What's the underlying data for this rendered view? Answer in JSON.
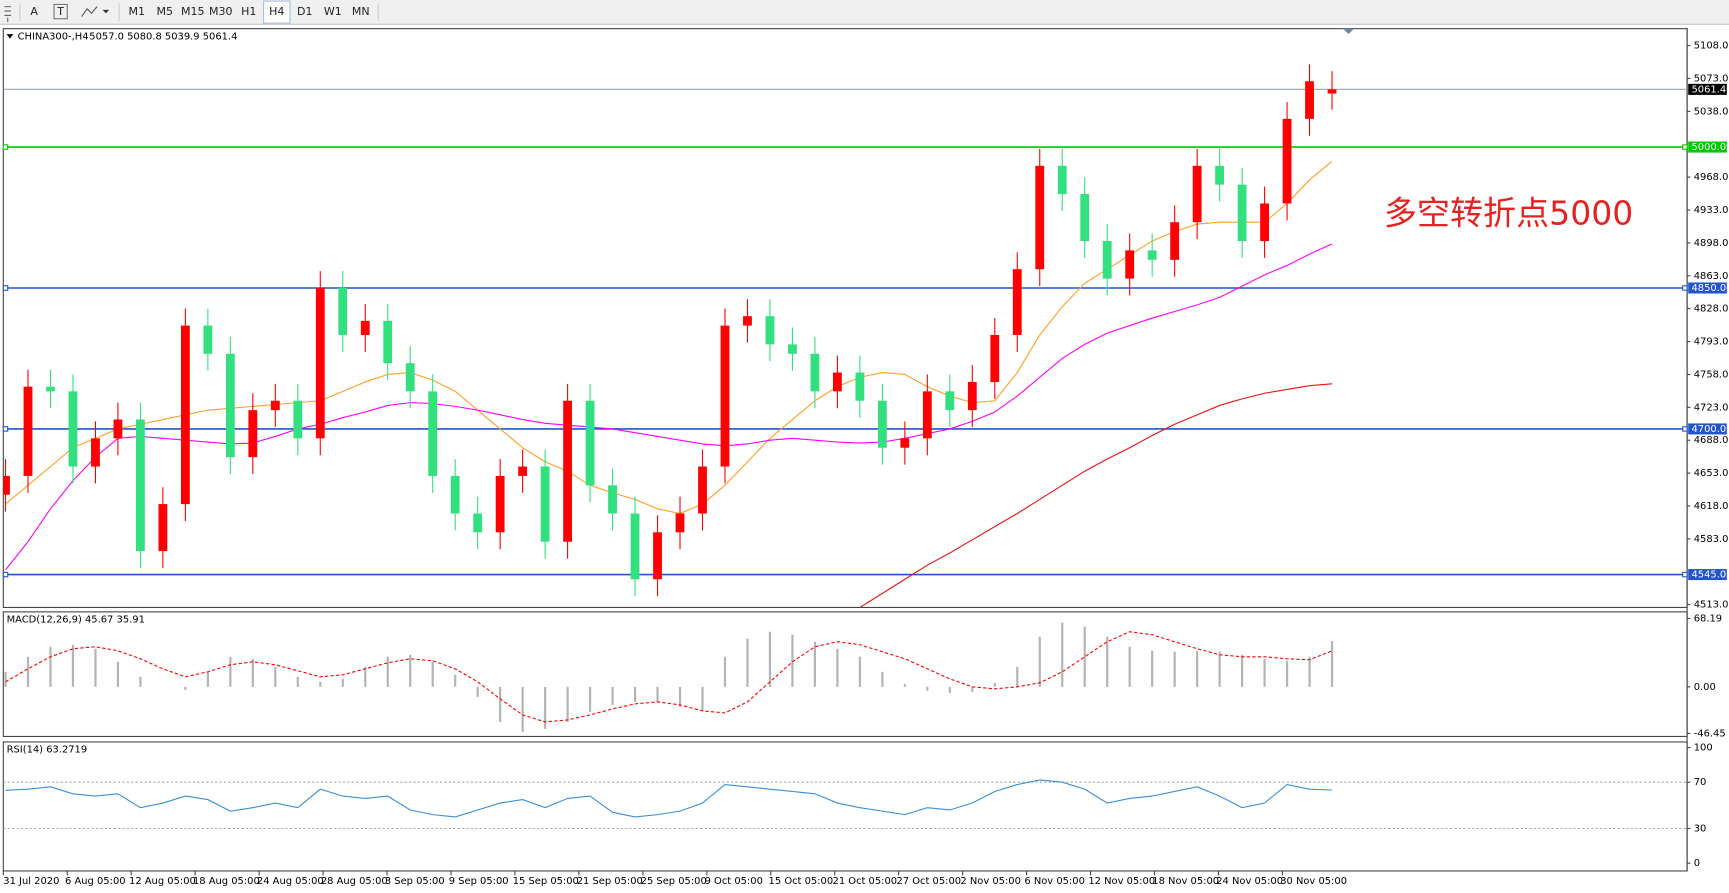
{
  "toolbar": {
    "tools": [
      "A",
      "T"
    ],
    "timeframes": [
      "M1",
      "M5",
      "M15",
      "M30",
      "H1",
      "H4",
      "D1",
      "W1",
      "MN"
    ],
    "active": "H4"
  },
  "chart_data": [
    {
      "type": "candlestick",
      "title": "CHINA300-,H4",
      "ohlc_label": "5057.0 5080.8 5039.9 5061.4",
      "annotation": "多空转折点5000",
      "x_labels": [
        "31 Jul 2020",
        "6 Aug 05:00",
        "12 Aug 05:00",
        "18 Aug 05:00",
        "24 Aug 05:00",
        "28 Aug 05:00",
        "3 Sep 05:00",
        "9 Sep 05:00",
        "15 Sep 05:00",
        "21 Sep 05:00",
        "25 Sep 05:00",
        "9 Oct 05:00",
        "15 Oct 05:00",
        "21 Oct 05:00",
        "27 Oct 05:00",
        "2 Nov 05:00",
        "6 Nov 05:00",
        "12 Nov 05:00",
        "18 Nov 05:00",
        "24 Nov 05:00",
        "30 Nov 05:00"
      ],
      "open": [
        4630,
        4650,
        4745,
        4740,
        4660,
        4690,
        4710,
        4570,
        4620,
        4810,
        4780,
        4670,
        4720,
        4730,
        4690,
        4850,
        4800,
        4815,
        4770,
        4740,
        4650,
        4610,
        4590,
        4650,
        4660,
        4580,
        4730,
        4640,
        4610,
        4540,
        4590,
        4610,
        4660,
        4810,
        4820,
        4790,
        4780,
        4740,
        4760,
        4730,
        4680,
        4690,
        4740,
        4720,
        4750,
        4800,
        4870,
        4980,
        4950,
        4900,
        4860,
        4890,
        4880,
        4920,
        4980,
        4960,
        4900,
        4940,
        5030,
        5057
      ],
      "high": [
        4668,
        4763,
        4763,
        4758,
        4708,
        4728,
        4728,
        4638,
        4828,
        4828,
        4798,
        4738,
        4748,
        4748,
        4868,
        4868,
        4833,
        4833,
        4788,
        4758,
        4668,
        4628,
        4668,
        4678,
        4678,
        4748,
        4748,
        4658,
        4628,
        4608,
        4628,
        4678,
        4828,
        4838,
        4838,
        4808,
        4798,
        4778,
        4778,
        4748,
        4708,
        4758,
        4758,
        4768,
        4818,
        4888,
        4998,
        4998,
        4968,
        4918,
        4908,
        4908,
        4938,
        4998,
        4998,
        4978,
        4958,
        5048,
        5088,
        5080.8
      ],
      "low": [
        4612,
        4632,
        4722,
        4642,
        4642,
        4672,
        4552,
        4552,
        4602,
        4762,
        4652,
        4652,
        4702,
        4672,
        4672,
        4782,
        4782,
        4752,
        4722,
        4632,
        4592,
        4572,
        4572,
        4632,
        4562,
        4562,
        4622,
        4592,
        4522,
        4522,
        4572,
        4592,
        4642,
        4792,
        4772,
        4762,
        4722,
        4722,
        4712,
        4662,
        4662,
        4672,
        4702,
        4702,
        4732,
        4782,
        4852,
        4932,
        4882,
        4842,
        4842,
        4862,
        4862,
        4902,
        4942,
        4882,
        4882,
        4922,
        5012,
        5039.9
      ],
      "close": [
        4650,
        4745,
        4740,
        4660,
        4690,
        4710,
        4570,
        4620,
        4810,
        4780,
        4670,
        4720,
        4730,
        4690,
        4850,
        4800,
        4815,
        4770,
        4740,
        4650,
        4610,
        4590,
        4650,
        4660,
        4580,
        4730,
        4640,
        4610,
        4540,
        4590,
        4610,
        4660,
        4810,
        4820,
        4790,
        4780,
        4740,
        4760,
        4730,
        4680,
        4690,
        4740,
        4720,
        4750,
        4800,
        4870,
        4980,
        4950,
        4900,
        4860,
        4890,
        4880,
        4920,
        4980,
        4960,
        4900,
        4940,
        5030,
        5070,
        5061.4
      ],
      "up_color": "#ff0000",
      "down_color": "#33e07f",
      "moving_averages": [
        {
          "color": "#ffa028",
          "values": [
            4620,
            4640,
            4660,
            4680,
            4690,
            4700,
            4705,
            4710,
            4715,
            4720,
            4722,
            4724,
            4726,
            4728,
            4730,
            4740,
            4750,
            4758,
            4760,
            4752,
            4740,
            4720,
            4700,
            4680,
            4665,
            4655,
            4640,
            4632,
            4625,
            4615,
            4610,
            4620,
            4640,
            4665,
            4690,
            4710,
            4730,
            4745,
            4755,
            4760,
            4758,
            4745,
            4735,
            4728,
            4730,
            4760,
            4800,
            4830,
            4855,
            4870,
            4885,
            4900,
            4910,
            4918,
            4920,
            4920,
            4920,
            4940,
            4965,
            4985
          ]
        },
        {
          "color": "#ff00ff",
          "values": [
            4550,
            4580,
            4615,
            4645,
            4670,
            4690,
            4692,
            4690,
            4688,
            4686,
            4684,
            4685,
            4692,
            4700,
            4705,
            4712,
            4718,
            4725,
            4728,
            4727,
            4724,
            4720,
            4715,
            4710,
            4706,
            4704,
            4702,
            4700,
            4696,
            4692,
            4688,
            4684,
            4682,
            4684,
            4688,
            4690,
            4688,
            4686,
            4685,
            4686,
            4690,
            4695,
            4700,
            4708,
            4718,
            4735,
            4755,
            4775,
            4790,
            4802,
            4810,
            4818,
            4825,
            4832,
            4840,
            4852,
            4864,
            4874,
            4886,
            4897
          ]
        },
        {
          "color": "#ee1111",
          "values": [
            null,
            null,
            null,
            null,
            null,
            null,
            null,
            null,
            null,
            null,
            null,
            null,
            null,
            null,
            null,
            null,
            null,
            null,
            null,
            null,
            null,
            null,
            null,
            null,
            null,
            null,
            null,
            null,
            null,
            null,
            null,
            null,
            null,
            null,
            null,
            null,
            null,
            null,
            4510,
            4525,
            4540,
            4555,
            4568,
            4582,
            4596,
            4610,
            4625,
            4640,
            4655,
            4668,
            4680,
            4693,
            4705,
            4715,
            4725,
            4732,
            4738,
            4742,
            4746,
            4748
          ]
        }
      ],
      "levels": [
        {
          "value": 5000,
          "label": "5000.0",
          "color": "#00c800"
        },
        {
          "value": 4850,
          "label": "4850.0",
          "color": "#2255cc"
        },
        {
          "value": 4700,
          "label": "4700.0",
          "color": "#2255cc"
        },
        {
          "value": 4545,
          "label": "4545.0",
          "color": "#2255cc"
        }
      ],
      "price_line": {
        "value": 5061.4,
        "label": "5061.4"
      },
      "ylim": [
        4510,
        5126
      ],
      "yticks": [
        {
          "value": 5108,
          "label": "5108.0"
        },
        {
          "value": 5073,
          "label": "5073.0"
        },
        {
          "value": 5038,
          "label": "5038.0"
        },
        {
          "value": 4968,
          "label": "4968.0"
        },
        {
          "value": 4933,
          "label": "4933.0"
        },
        {
          "value": 4898,
          "label": "4898.0"
        },
        {
          "value": 4863,
          "label": "4863.0"
        },
        {
          "value": 4828,
          "label": "4828.0"
        },
        {
          "value": 4793,
          "label": "4793.0"
        },
        {
          "value": 4758,
          "label": "4758.0"
        },
        {
          "value": 4723,
          "label": "4723.0"
        },
        {
          "value": 4688,
          "label": "4688.0"
        },
        {
          "value": 4653,
          "label": "4653.0"
        },
        {
          "value": 4618,
          "label": "4618.0"
        },
        {
          "value": 4583,
          "label": "4583.0"
        },
        {
          "value": 4513,
          "label": "4513.0"
        }
      ]
    },
    {
      "type": "macd",
      "title": "MACD(12,26,9) 45.67 35.91",
      "histogram": [
        15,
        30,
        40,
        42,
        38,
        25,
        10,
        0,
        -3,
        15,
        30,
        28,
        20,
        10,
        5,
        8,
        20,
        30,
        32,
        25,
        12,
        -10,
        -35,
        -45,
        -42,
        -35,
        -25,
        -18,
        -15,
        -16,
        -20,
        -24,
        30,
        48,
        55,
        52,
        45,
        38,
        30,
        15,
        3,
        -4,
        -6,
        -5,
        4,
        20,
        50,
        64,
        60,
        50,
        40,
        36,
        35,
        36,
        35,
        32,
        28,
        26,
        30,
        45.67
      ],
      "signal": [
        5,
        18,
        30,
        38,
        40,
        36,
        28,
        18,
        10,
        15,
        22,
        25,
        22,
        16,
        10,
        12,
        18,
        24,
        28,
        26,
        18,
        5,
        -12,
        -28,
        -35,
        -33,
        -28,
        -22,
        -17,
        -15,
        -18,
        -24,
        -26,
        -15,
        5,
        25,
        40,
        45,
        42,
        35,
        28,
        18,
        8,
        0,
        -2,
        0,
        4,
        15,
        30,
        45,
        55,
        52,
        45,
        38,
        32,
        30,
        30,
        28,
        27,
        35.91
      ],
      "histogram_color": "#b4b4b4",
      "signal_color": "#ff0000",
      "ylim": [
        -49.5,
        74.8
      ],
      "yticks": [
        {
          "value": 68.19,
          "label": "68.19"
        },
        {
          "value": 0,
          "label": "0.00"
        },
        {
          "value": -46.45,
          "label": "-46.45"
        }
      ]
    },
    {
      "type": "line",
      "title": "RSI(14) 63.2719",
      "values": [
        63,
        64,
        66,
        60,
        58,
        60,
        48,
        52,
        58,
        55,
        45,
        48,
        52,
        48,
        64,
        58,
        56,
        58,
        46,
        42,
        40,
        46,
        52,
        55,
        48,
        56,
        58,
        44,
        40,
        42,
        45,
        52,
        68,
        66,
        64,
        62,
        60,
        52,
        48,
        45,
        42,
        48,
        46,
        52,
        62,
        68,
        72,
        70,
        64,
        52,
        56,
        58,
        62,
        66,
        58,
        48,
        52,
        68,
        64,
        63.2719
      ],
      "color": "#3a8fd8",
      "levels": [
        70,
        30
      ],
      "ylim": [
        -6.7,
        104.8
      ],
      "yticks": [
        100,
        70,
        30,
        0
      ]
    }
  ]
}
